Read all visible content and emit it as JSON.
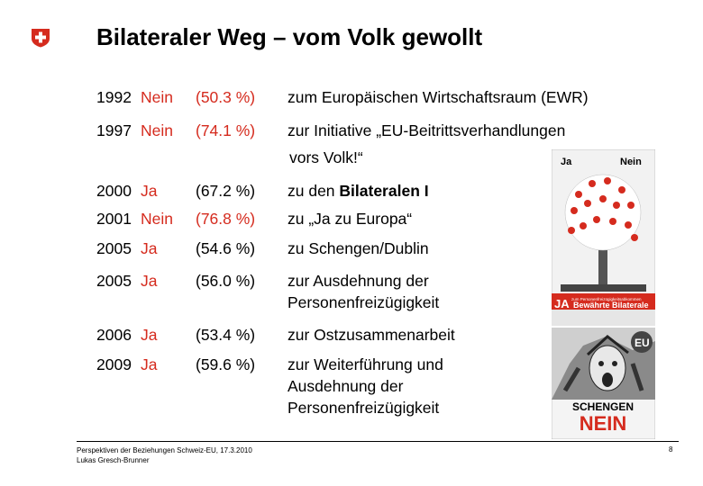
{
  "slide": {
    "title": "Bilateraler Weg – vom Volk gewollt"
  },
  "votes": [
    {
      "year": "1992",
      "result": "Nein",
      "percent": "(50.3 %)",
      "text": "zum Europäischen Wirtschaftsraum (EWR)",
      "cont": []
    },
    {
      "year": "1997",
      "result": "Nein",
      "percent": "(74.1 %)",
      "text": "zur Initiative „EU-Beitrittsverhandlungen",
      "cont": [
        "vors Volk!“"
      ]
    },
    {
      "year": "2000",
      "result": "Ja",
      "percent": "(67.2 %)",
      "text_pre": "zu den ",
      "text_bold": "Bilateralen I",
      "cont": []
    },
    {
      "year": "2001",
      "result": "Nein",
      "percent": "(76.8 %)",
      "text": "zu „Ja zu Europa“",
      "cont": []
    },
    {
      "year": "2005",
      "result": "Ja",
      "percent": "(54.6 %)",
      "text": "zu Schengen/Dublin",
      "cont": []
    },
    {
      "year": "2005",
      "result": "Ja",
      "percent": "(56.0 %)",
      "text": "zur Ausdehnung der",
      "cont": [
        "Personenfreizügigkeit"
      ]
    },
    {
      "year": "2006",
      "result": "Ja",
      "percent": "(53.4 %)",
      "text": "zur Ostzusammenarbeit",
      "cont": []
    },
    {
      "year": "2009",
      "result": "Ja",
      "percent": "(59.6 %)",
      "text": "zur Weiterführung und",
      "cont": [
        "Ausdehnung der",
        "Personenfreizügigkeit"
      ]
    }
  ],
  "poster_top": {
    "label_ja": "Ja",
    "label_nein": "Nein",
    "banner_small": "zum Personenfreizügigkeitsabkommen",
    "banner_ja": "JA",
    "banner_text": "Bewährte Bilaterale"
  },
  "poster_bottom": {
    "eu_label": "EU",
    "line1": "SCHENGEN",
    "line2": "NEIN"
  },
  "footer": {
    "line1": "Perspektiven der Beziehungen Schweiz-EU, 17.3.2010",
    "line2": "Lukas Gresch-Brunner",
    "page": "8"
  },
  "colors": {
    "accent": "#d52b1e"
  }
}
